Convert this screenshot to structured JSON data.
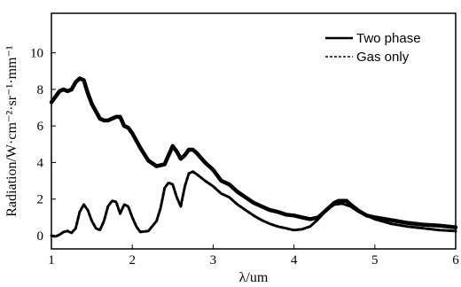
{
  "chart_data": {
    "type": "line",
    "xlabel": "λ/um",
    "ylabel": "Radiation/W·cm⁻²·sr⁻¹·mm⁻¹",
    "xlim": [
      1,
      6
    ],
    "ylim": [
      0,
      12
    ],
    "xticks": [
      1,
      2,
      3,
      4,
      5,
      6
    ],
    "yticks": [
      0,
      2,
      4,
      6,
      8,
      10
    ],
    "grid": false,
    "legend_position": "top-right",
    "series": [
      {
        "name": "Two phase",
        "style": "solid",
        "color": "#000000",
        "x": [
          1.0,
          1.05,
          1.1,
          1.15,
          1.2,
          1.25,
          1.3,
          1.35,
          1.4,
          1.45,
          1.5,
          1.55,
          1.6,
          1.65,
          1.7,
          1.75,
          1.8,
          1.85,
          1.9,
          1.95,
          2.0,
          2.1,
          2.2,
          2.3,
          2.4,
          2.45,
          2.5,
          2.55,
          2.6,
          2.65,
          2.7,
          2.75,
          2.8,
          2.9,
          3.0,
          3.1,
          3.2,
          3.3,
          3.4,
          3.5,
          3.6,
          3.7,
          3.8,
          3.9,
          4.0,
          4.1,
          4.2,
          4.3,
          4.4,
          4.5,
          4.55,
          4.6,
          4.65,
          4.7,
          4.8,
          4.9,
          5.0,
          5.2,
          5.4,
          5.6,
          5.8,
          6.0
        ],
        "y": [
          7.3,
          7.6,
          7.9,
          8.0,
          7.9,
          8.0,
          8.4,
          8.6,
          8.5,
          7.8,
          7.2,
          6.8,
          6.4,
          6.3,
          6.3,
          6.4,
          6.5,
          6.5,
          6.0,
          5.9,
          5.6,
          4.8,
          4.1,
          3.8,
          3.9,
          4.4,
          4.9,
          4.6,
          4.2,
          4.4,
          4.7,
          4.7,
          4.5,
          4.0,
          3.6,
          3.0,
          2.8,
          2.4,
          2.1,
          1.8,
          1.6,
          1.4,
          1.3,
          1.15,
          1.1,
          1.0,
          0.9,
          1.0,
          1.4,
          1.8,
          1.9,
          1.9,
          1.9,
          1.7,
          1.35,
          1.1,
          1.0,
          0.85,
          0.7,
          0.6,
          0.55,
          0.45
        ]
      },
      {
        "name": "Gas only",
        "style": "dashed",
        "color": "#000000",
        "x": [
          1.0,
          1.05,
          1.1,
          1.15,
          1.2,
          1.25,
          1.3,
          1.35,
          1.4,
          1.45,
          1.5,
          1.55,
          1.6,
          1.65,
          1.7,
          1.75,
          1.8,
          1.85,
          1.9,
          1.95,
          2.0,
          2.05,
          2.1,
          2.2,
          2.3,
          2.35,
          2.4,
          2.45,
          2.5,
          2.55,
          2.6,
          2.65,
          2.7,
          2.75,
          2.8,
          2.9,
          3.0,
          3.1,
          3.2,
          3.3,
          3.4,
          3.5,
          3.6,
          3.7,
          3.8,
          3.9,
          4.0,
          4.1,
          4.2,
          4.3,
          4.4,
          4.5,
          4.6,
          4.7,
          4.8,
          5.0,
          5.2,
          5.4,
          5.6,
          5.8,
          6.0
        ],
        "y": [
          0.0,
          -0.05,
          0.05,
          0.2,
          0.25,
          0.15,
          0.4,
          1.3,
          1.7,
          1.4,
          0.8,
          0.4,
          0.3,
          0.8,
          1.6,
          1.9,
          1.85,
          1.2,
          1.7,
          1.6,
          1.0,
          0.5,
          0.2,
          0.25,
          0.8,
          1.5,
          2.6,
          2.9,
          2.8,
          2.1,
          1.6,
          2.7,
          3.4,
          3.5,
          3.35,
          3.0,
          2.7,
          2.3,
          2.1,
          1.7,
          1.4,
          1.1,
          0.85,
          0.65,
          0.5,
          0.4,
          0.3,
          0.35,
          0.5,
          0.9,
          1.4,
          1.7,
          1.75,
          1.6,
          1.3,
          0.9,
          0.65,
          0.5,
          0.4,
          0.3,
          0.25
        ]
      }
    ]
  }
}
